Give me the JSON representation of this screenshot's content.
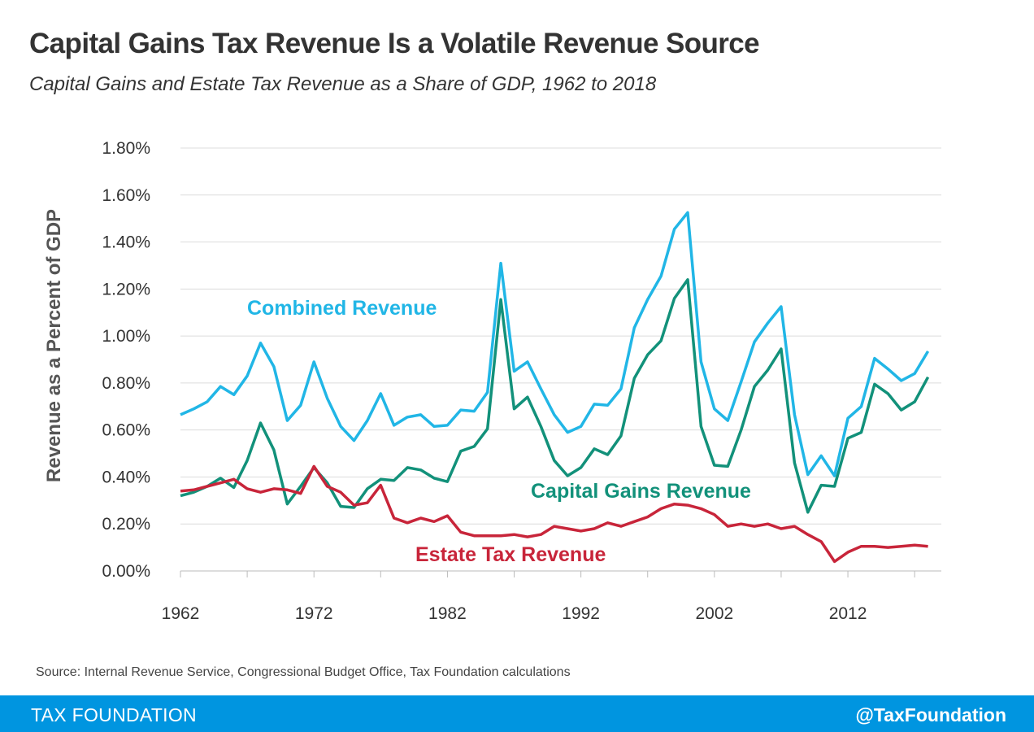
{
  "header": {
    "title": "Capital Gains Tax Revenue Is a Volatile Revenue Source",
    "subtitle": "Capital Gains and Estate Tax Revenue as a Share of GDP, 1962 to 2018"
  },
  "source": "Source: Internal Revenue Service, Congressional Budget Office, Tax Foundation calculations",
  "footer": {
    "left": "TAX FOUNDATION",
    "right": "@TaxFoundation"
  },
  "chart_data": {
    "type": "line",
    "title": "Capital Gains Tax Revenue Is a Volatile Revenue Source",
    "subtitle": "Capital Gains and Estate Tax Revenue as a Share of GDP, 1962 to 2018",
    "xlabel": "",
    "ylabel": "Revenue as a Percent of GDP",
    "xlim": [
      1962,
      2019
    ],
    "ylim": [
      0,
      1.8
    ],
    "x_ticks": [
      "1962",
      "1972",
      "1982",
      "1992",
      "2002",
      "2012"
    ],
    "y_ticks": [
      "0.00%",
      "0.20%",
      "0.40%",
      "0.60%",
      "0.80%",
      "1.00%",
      "1.20%",
      "1.40%",
      "1.60%",
      "1.80%"
    ],
    "grid": true,
    "legend": "inline labels",
    "x": [
      1962,
      1963,
      1964,
      1965,
      1966,
      1967,
      1968,
      1969,
      1970,
      1971,
      1972,
      1973,
      1974,
      1975,
      1976,
      1977,
      1978,
      1979,
      1980,
      1981,
      1982,
      1983,
      1984,
      1985,
      1986,
      1987,
      1988,
      1989,
      1990,
      1991,
      1992,
      1993,
      1994,
      1995,
      1996,
      1997,
      1998,
      1999,
      2000,
      2001,
      2002,
      2003,
      2004,
      2005,
      2006,
      2007,
      2008,
      2009,
      2010,
      2011,
      2012,
      2013,
      2014,
      2015,
      2016,
      2017,
      2018
    ],
    "series": [
      {
        "name": "Combined Revenue",
        "color": "#21b6e6",
        "values": [
          0.665,
          0.69,
          0.72,
          0.785,
          0.75,
          0.83,
          0.97,
          0.87,
          0.64,
          0.705,
          0.89,
          0.735,
          0.615,
          0.555,
          0.64,
          0.755,
          0.62,
          0.655,
          0.665,
          0.615,
          0.62,
          0.685,
          0.68,
          0.76,
          1.31,
          0.85,
          0.89,
          0.775,
          0.665,
          0.59,
          0.615,
          0.71,
          0.705,
          0.775,
          1.035,
          1.155,
          1.255,
          1.455,
          1.525,
          0.89,
          0.69,
          0.64,
          0.805,
          0.975,
          1.055,
          1.125,
          0.665,
          0.41,
          0.49,
          0.405,
          0.65,
          0.7,
          0.905,
          0.86,
          0.81,
          0.84,
          0.935
        ]
      },
      {
        "name": "Capital Gains Revenue",
        "color": "#12917a",
        "values": [
          0.32,
          0.335,
          0.36,
          0.395,
          0.355,
          0.47,
          0.63,
          0.515,
          0.285,
          0.36,
          0.44,
          0.375,
          0.275,
          0.27,
          0.35,
          0.39,
          0.385,
          0.44,
          0.43,
          0.395,
          0.38,
          0.51,
          0.53,
          0.605,
          1.155,
          0.69,
          0.74,
          0.615,
          0.47,
          0.405,
          0.44,
          0.52,
          0.495,
          0.575,
          0.82,
          0.92,
          0.98,
          1.16,
          1.24,
          0.615,
          0.45,
          0.445,
          0.6,
          0.785,
          0.855,
          0.945,
          0.46,
          0.25,
          0.365,
          0.36,
          0.565,
          0.59,
          0.795,
          0.755,
          0.685,
          0.72,
          0.825
        ]
      },
      {
        "name": "Estate Tax Revenue",
        "color": "#c8253a",
        "values": [
          0.34,
          0.345,
          0.36,
          0.375,
          0.39,
          0.35,
          0.335,
          0.35,
          0.345,
          0.33,
          0.445,
          0.36,
          0.335,
          0.28,
          0.29,
          0.365,
          0.225,
          0.205,
          0.225,
          0.21,
          0.235,
          0.165,
          0.15,
          0.15,
          0.15,
          0.155,
          0.145,
          0.155,
          0.19,
          0.18,
          0.17,
          0.18,
          0.205,
          0.19,
          0.21,
          0.23,
          0.265,
          0.285,
          0.28,
          0.265,
          0.24,
          0.19,
          0.2,
          0.19,
          0.2,
          0.18,
          0.19,
          0.155,
          0.125,
          0.04,
          0.08,
          0.105,
          0.105,
          0.1,
          0.105,
          0.11,
          0.105
        ]
      }
    ]
  }
}
